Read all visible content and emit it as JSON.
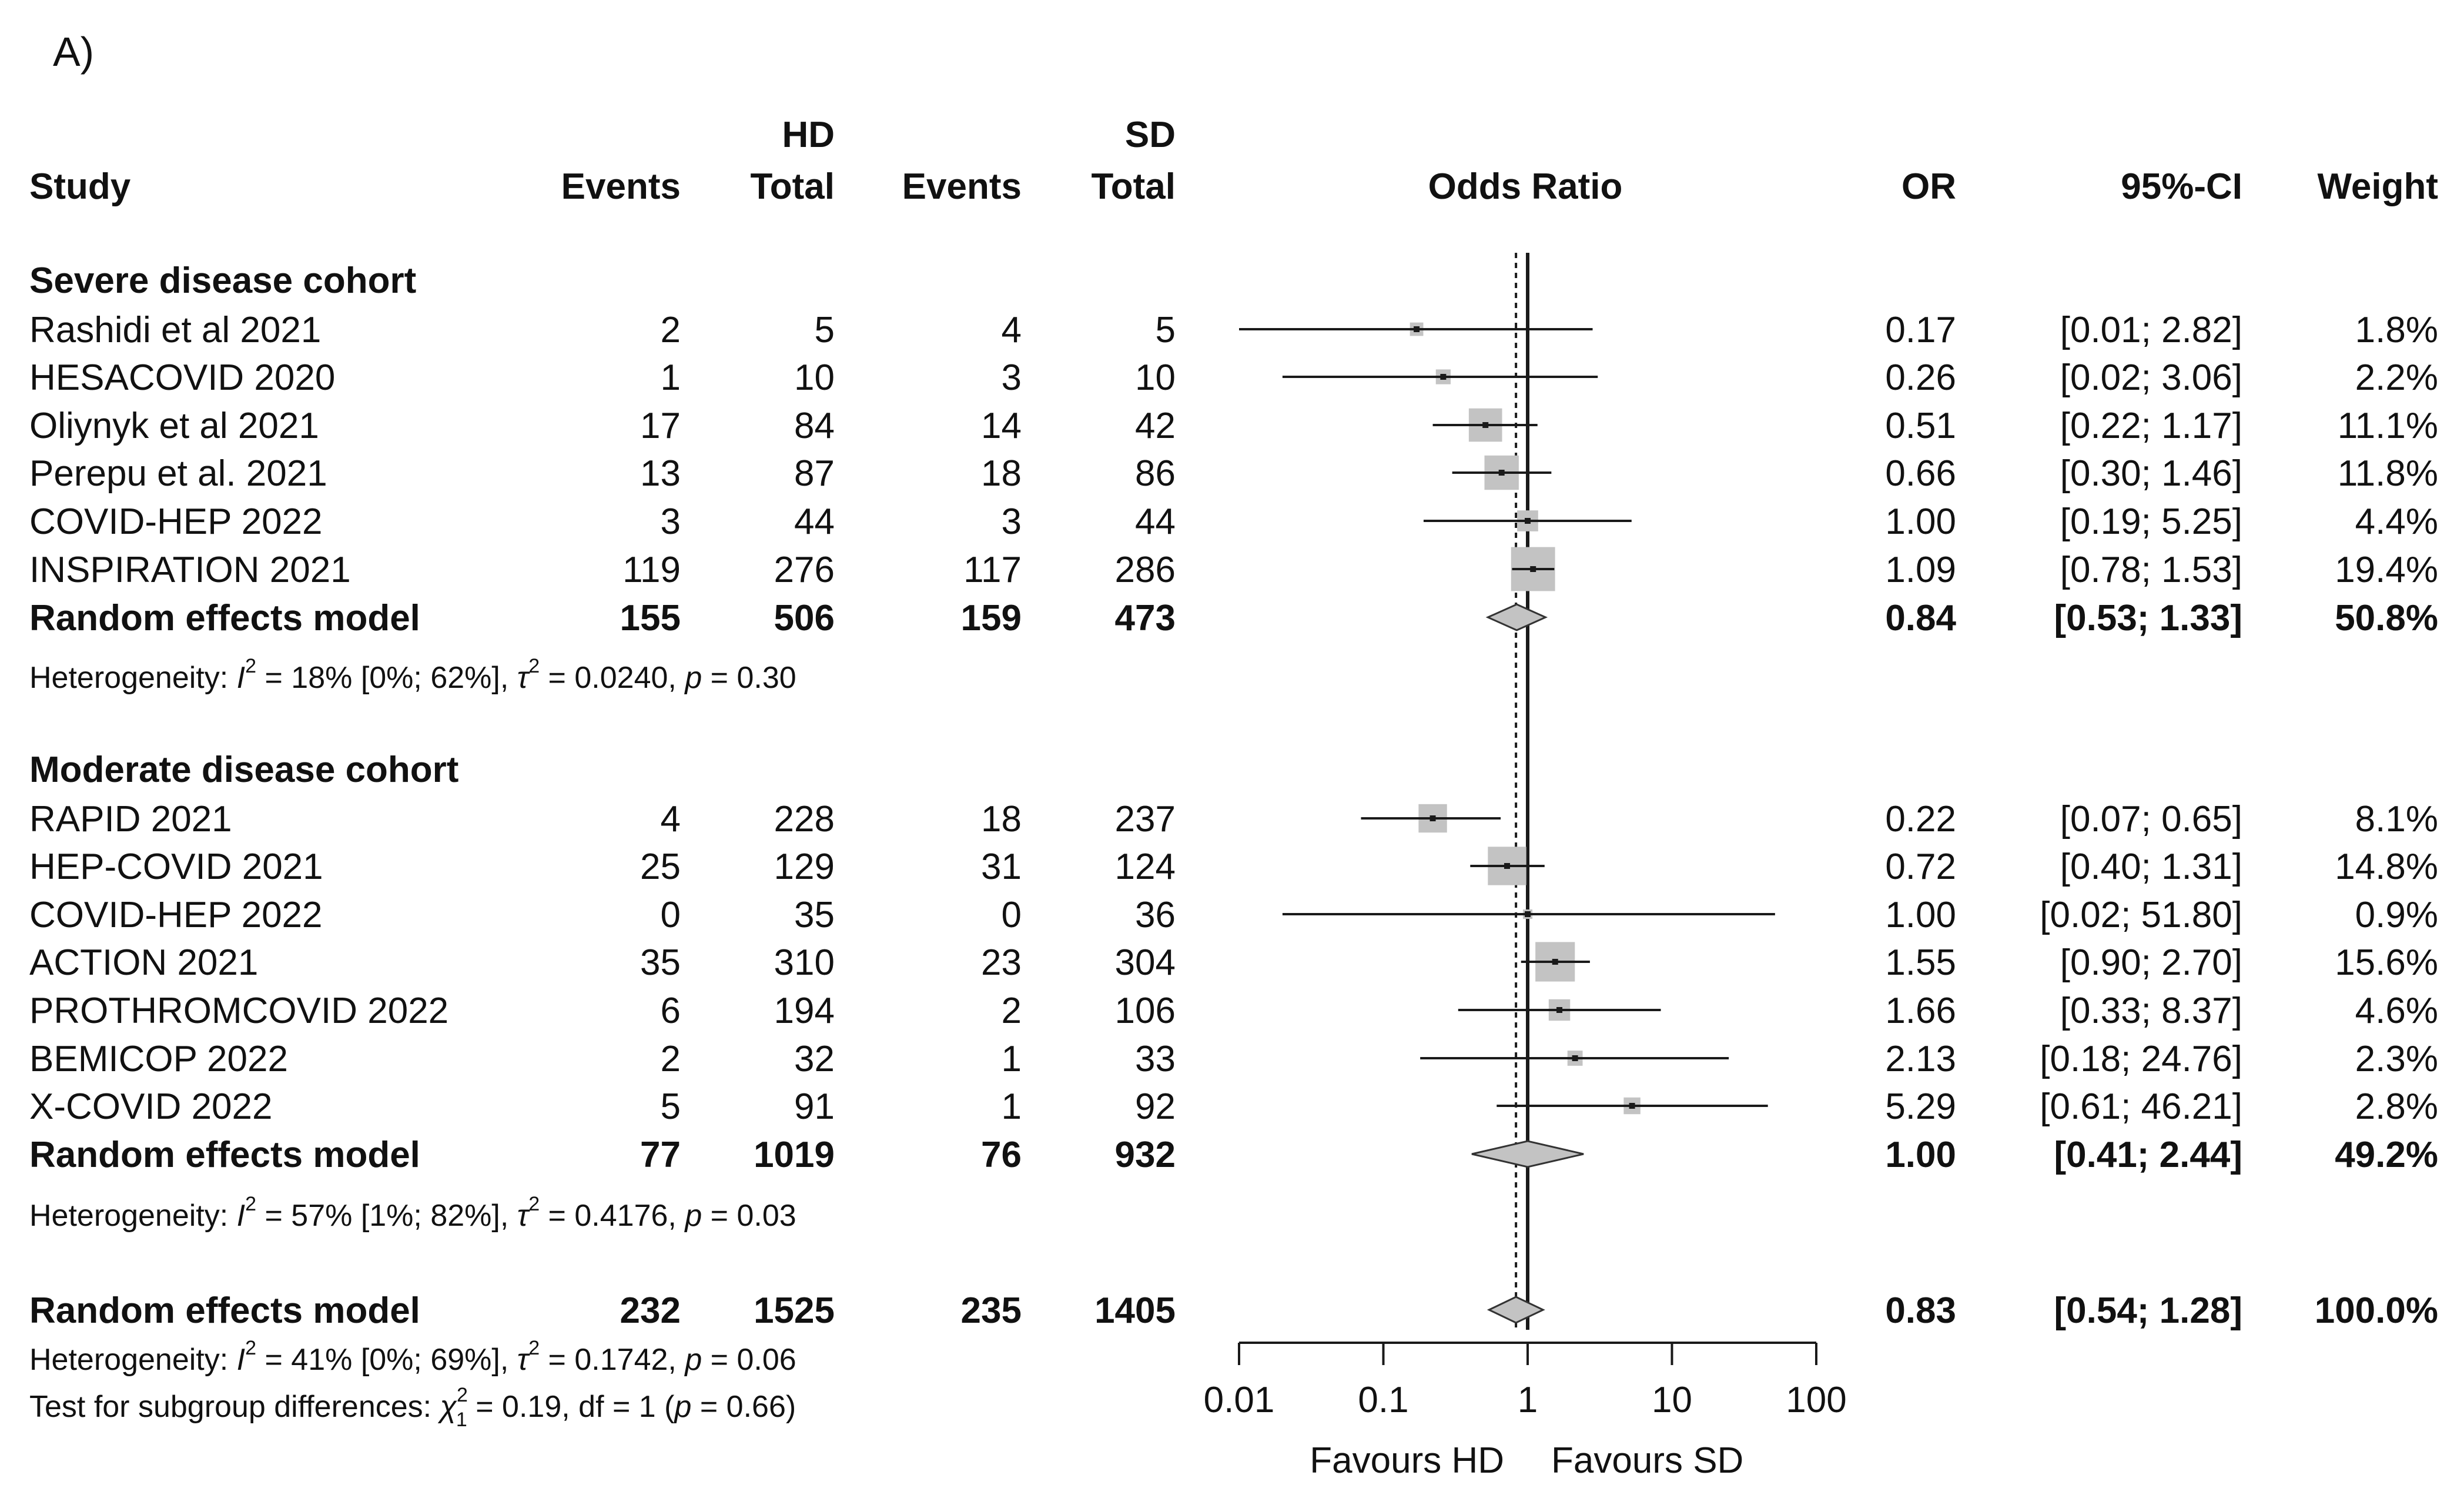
{
  "panel_label": "A)",
  "columns": {
    "study": "Study",
    "hd_group": "HD",
    "sd_group": "SD",
    "events": "Events",
    "total": "Total",
    "odds_ratio": "Odds Ratio",
    "or": "OR",
    "ci": "95%-CI",
    "weight": "Weight"
  },
  "chart_data": {
    "type": "forest",
    "scale": "log",
    "null_value": 1,
    "pooled_or": 0.83,
    "x_ticks": [
      0.01,
      0.1,
      1,
      10,
      100
    ],
    "x_tick_labels": [
      "0.01",
      "0.1",
      "1",
      "10",
      "100"
    ],
    "xlabel_left": "Favours HD",
    "xlabel_right": "Favours SD",
    "groups": [
      {
        "name": "Severe disease cohort",
        "studies": [
          {
            "study": "Rashidi et al 2021",
            "hd_events": "2",
            "hd_total": "5",
            "sd_events": "4",
            "sd_total": "5",
            "or_text": "0.17",
            "ci_text": "[0.01;  2.82]",
            "weight_text": "1.8%",
            "or": 0.17,
            "lo": 0.01,
            "hi": 2.82,
            "weight": 1.8
          },
          {
            "study": "HESACOVID 2020",
            "hd_events": "1",
            "hd_total": "10",
            "sd_events": "3",
            "sd_total": "10",
            "or_text": "0.26",
            "ci_text": "[0.02;  3.06]",
            "weight_text": "2.2%",
            "or": 0.26,
            "lo": 0.02,
            "hi": 3.06,
            "weight": 2.2
          },
          {
            "study": "Oliynyk et al 2021",
            "hd_events": "17",
            "hd_total": "84",
            "sd_events": "14",
            "sd_total": "42",
            "or_text": "0.51",
            "ci_text": "[0.22;  1.17]",
            "weight_text": "11.1%",
            "or": 0.51,
            "lo": 0.22,
            "hi": 1.17,
            "weight": 11.1
          },
          {
            "study": "Perepu et al. 2021",
            "hd_events": "13",
            "hd_total": "87",
            "sd_events": "18",
            "sd_total": "86",
            "or_text": "0.66",
            "ci_text": "[0.30;  1.46]",
            "weight_text": "11.8%",
            "or": 0.66,
            "lo": 0.3,
            "hi": 1.46,
            "weight": 11.8
          },
          {
            "study": "COVID-HEP 2022",
            "hd_events": "3",
            "hd_total": "44",
            "sd_events": "3",
            "sd_total": "44",
            "or_text": "1.00",
            "ci_text": "[0.19;  5.25]",
            "weight_text": "4.4%",
            "or": 1.0,
            "lo": 0.19,
            "hi": 5.25,
            "weight": 4.4
          },
          {
            "study": "INSPIRATION 2021",
            "hd_events": "119",
            "hd_total": "276",
            "sd_events": "117",
            "sd_total": "286",
            "or_text": "1.09",
            "ci_text": "[0.78;  1.53]",
            "weight_text": "19.4%",
            "or": 1.09,
            "lo": 0.78,
            "hi": 1.53,
            "weight": 19.4
          }
        ],
        "summary": {
          "label": "Random effects model",
          "hd_events": "155",
          "hd_total": "506",
          "sd_events": "159",
          "sd_total": "473",
          "or_text": "0.84",
          "ci_text": "[0.53;  1.33]",
          "weight_text": "50.8%",
          "or": 0.84,
          "lo": 0.53,
          "hi": 1.33
        },
        "heterogeneity": {
          "lead": "Heterogeneity: ",
          "i2_symbol": "I",
          "exp": "2",
          "i2_rest": " = 18% [0%; 62%], ",
          "tau_symbol": "τ",
          "tau_rest": " = 0.0240, ",
          "p_symbol": "p",
          "p_rest": " = 0.30"
        }
      },
      {
        "name": "Moderate disease cohort",
        "studies": [
          {
            "study": "RAPID 2021",
            "hd_events": "4",
            "hd_total": "228",
            "sd_events": "18",
            "sd_total": "237",
            "or_text": "0.22",
            "ci_text": "[0.07;  0.65]",
            "weight_text": "8.1%",
            "or": 0.22,
            "lo": 0.07,
            "hi": 0.65,
            "weight": 8.1
          },
          {
            "study": "HEP-COVID 2021",
            "hd_events": "25",
            "hd_total": "129",
            "sd_events": "31",
            "sd_total": "124",
            "or_text": "0.72",
            "ci_text": "[0.40;  1.31]",
            "weight_text": "14.8%",
            "or": 0.72,
            "lo": 0.4,
            "hi": 1.31,
            "weight": 14.8
          },
          {
            "study": "COVID-HEP 2022",
            "hd_events": "0",
            "hd_total": "35",
            "sd_events": "0",
            "sd_total": "36",
            "or_text": "1.00",
            "ci_text": "[0.02; 51.80]",
            "weight_text": "0.9%",
            "or": 1.0,
            "lo": 0.02,
            "hi": 51.8,
            "weight": 0.9
          },
          {
            "study": "ACTION 2021",
            "hd_events": "35",
            "hd_total": "310",
            "sd_events": "23",
            "sd_total": "304",
            "or_text": "1.55",
            "ci_text": "[0.90;  2.70]",
            "weight_text": "15.6%",
            "or": 1.55,
            "lo": 0.9,
            "hi": 2.7,
            "weight": 15.6
          },
          {
            "study": "PROTHROMCOVID 2022",
            "hd_events": "6",
            "hd_total": "194",
            "sd_events": "2",
            "sd_total": "106",
            "or_text": "1.66",
            "ci_text": "[0.33;  8.37]",
            "weight_text": "4.6%",
            "or": 1.66,
            "lo": 0.33,
            "hi": 8.37,
            "weight": 4.6
          },
          {
            "study": "BEMICOP 2022",
            "hd_events": "2",
            "hd_total": "32",
            "sd_events": "1",
            "sd_total": "33",
            "or_text": "2.13",
            "ci_text": "[0.18; 24.76]",
            "weight_text": "2.3%",
            "or": 2.13,
            "lo": 0.18,
            "hi": 24.76,
            "weight": 2.3
          },
          {
            "study": "X-COVID 2022",
            "hd_events": "5",
            "hd_total": "91",
            "sd_events": "1",
            "sd_total": "92",
            "or_text": "5.29",
            "ci_text": "[0.61; 46.21]",
            "weight_text": "2.8%",
            "or": 5.29,
            "lo": 0.61,
            "hi": 46.21,
            "weight": 2.8
          }
        ],
        "summary": {
          "label": "Random effects model",
          "hd_events": "77",
          "hd_total": "1019",
          "sd_events": "76",
          "sd_total": "932",
          "or_text": "1.00",
          "ci_text": "[0.41;  2.44]",
          "weight_text": "49.2%",
          "or": 1.0,
          "lo": 0.41,
          "hi": 2.44
        },
        "heterogeneity": {
          "lead": "Heterogeneity: ",
          "i2_symbol": "I",
          "exp": "2",
          "i2_rest": " = 57% [1%; 82%], ",
          "tau_symbol": "τ",
          "tau_rest": " = 0.4176, ",
          "p_symbol": "p",
          "p_rest": " = 0.03"
        }
      }
    ],
    "overall": {
      "summary": {
        "label": "Random effects model",
        "hd_events": "232",
        "hd_total": "1525",
        "sd_events": "235",
        "sd_total": "1405",
        "or_text": "0.83",
        "ci_text": "[0.54;  1.28]",
        "weight_text": "100.0%",
        "or": 0.83,
        "lo": 0.54,
        "hi": 1.28
      },
      "heterogeneity": {
        "lead": "Heterogeneity: ",
        "i2_symbol": "I",
        "exp": "2",
        "i2_rest": " = 41% [0%; 69%], ",
        "tau_symbol": "τ",
        "tau_rest": " = 0.1742, ",
        "p_symbol": "p",
        "p_rest": " = 0.06"
      },
      "subgroup_test": {
        "lead": "Test for subgroup differences: ",
        "chi": "χ",
        "sub": "1",
        "exp": "2",
        "mid": " = 0.19, df = 1 (",
        "p_symbol": "p",
        "tail": " = 0.66)"
      }
    }
  }
}
